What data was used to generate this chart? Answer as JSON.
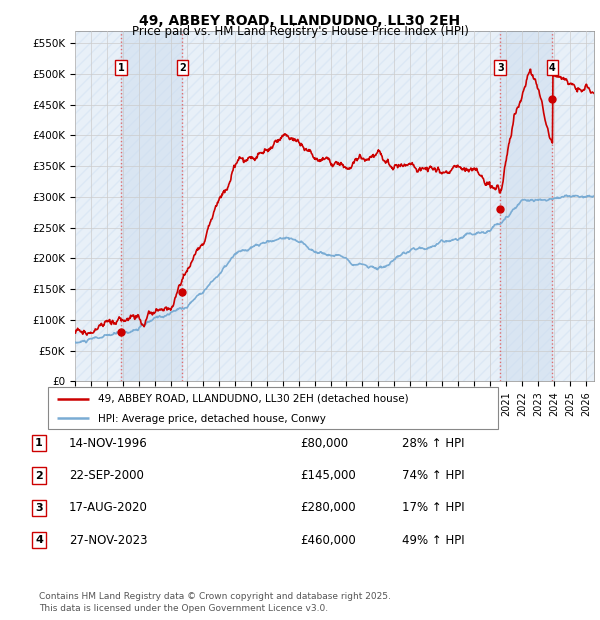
{
  "title": "49, ABBEY ROAD, LLANDUDNO, LL30 2EH",
  "subtitle": "Price paid vs. HM Land Registry's House Price Index (HPI)",
  "ylabel_ticks": [
    "£0",
    "£50K",
    "£100K",
    "£150K",
    "£200K",
    "£250K",
    "£300K",
    "£350K",
    "£400K",
    "£450K",
    "£500K",
    "£550K"
  ],
  "ytick_values": [
    0,
    50000,
    100000,
    150000,
    200000,
    250000,
    300000,
    350000,
    400000,
    450000,
    500000,
    550000
  ],
  "ylim": [
    0,
    570000
  ],
  "xmin": 1994.0,
  "xmax": 2026.5,
  "transactions": [
    {
      "date_num": 1996.87,
      "price": 80000,
      "label": "1"
    },
    {
      "date_num": 2000.72,
      "price": 145000,
      "label": "2"
    },
    {
      "date_num": 2020.63,
      "price": 280000,
      "label": "3"
    },
    {
      "date_num": 2023.9,
      "price": 460000,
      "label": "4"
    }
  ],
  "legend_entries": [
    {
      "label": "49, ABBEY ROAD, LLANDUDNO, LL30 2EH (detached house)",
      "color": "#cc0000",
      "lw": 1.5
    },
    {
      "label": "HPI: Average price, detached house, Conwy",
      "color": "#7aacd4",
      "lw": 1.5
    }
  ],
  "table_rows": [
    {
      "num": "1",
      "date": "14-NOV-1996",
      "price": "£80,000",
      "hpi": "28% ↑ HPI"
    },
    {
      "num": "2",
      "date": "22-SEP-2000",
      "price": "£145,000",
      "hpi": "74% ↑ HPI"
    },
    {
      "num": "3",
      "date": "17-AUG-2020",
      "price": "£280,000",
      "hpi": "17% ↑ HPI"
    },
    {
      "num": "4",
      "date": "27-NOV-2023",
      "price": "£460,000",
      "hpi": "49% ↑ HPI"
    }
  ],
  "footer": "Contains HM Land Registry data © Crown copyright and database right 2025.\nThis data is licensed under the Open Government Licence v3.0.",
  "bg_hatch_color": "#dce8f5",
  "bg_fill_color": "#e8f0f8",
  "bg_color": "#ffffff",
  "grid_color": "#cccccc",
  "vline_color": "#e06060"
}
